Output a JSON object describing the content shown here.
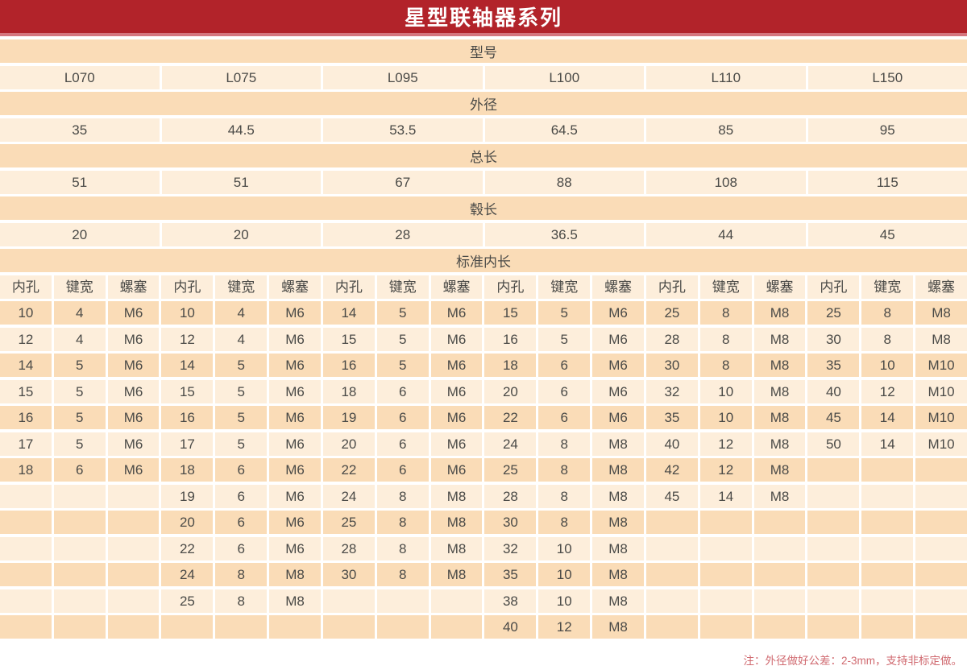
{
  "title": "星型联轴器系列",
  "colors": {
    "title_bar": "#b2232a",
    "title_stripe": "#d5767e",
    "row_dark": "#fadcb7",
    "row_light": "#fdeedb",
    "text": "#4a4a47",
    "note_text": "#d06a70"
  },
  "table": {
    "spec_rows": [
      {
        "label": "型号",
        "values": [
          "L070",
          "L075",
          "L095",
          "L100",
          "L110",
          "L150"
        ]
      },
      {
        "label": "外径",
        "values": [
          "35",
          "44.5",
          "53.5",
          "64.5",
          "85",
          "95"
        ]
      },
      {
        "label": "总长",
        "values": [
          "51",
          "51",
          "67",
          "88",
          "108",
          "115"
        ]
      },
      {
        "label": "毂长",
        "values": [
          "20",
          "20",
          "28",
          "36.5",
          "44",
          "45"
        ]
      }
    ],
    "bore_section": {
      "label": "标准内长",
      "sub_headers": [
        "内孔",
        "键宽",
        "螺塞"
      ],
      "group_count": 6,
      "rows": [
        [
          "10",
          "4",
          "M6",
          "10",
          "4",
          "M6",
          "14",
          "5",
          "M6",
          "15",
          "5",
          "M6",
          "25",
          "8",
          "M8",
          "25",
          "8",
          "M8"
        ],
        [
          "12",
          "4",
          "M6",
          "12",
          "4",
          "M6",
          "15",
          "5",
          "M6",
          "16",
          "5",
          "M6",
          "28",
          "8",
          "M8",
          "30",
          "8",
          "M8"
        ],
        [
          "14",
          "5",
          "M6",
          "14",
          "5",
          "M6",
          "16",
          "5",
          "M6",
          "18",
          "6",
          "M6",
          "30",
          "8",
          "M8",
          "35",
          "10",
          "M10"
        ],
        [
          "15",
          "5",
          "M6",
          "15",
          "5",
          "M6",
          "18",
          "6",
          "M6",
          "20",
          "6",
          "M6",
          "32",
          "10",
          "M8",
          "40",
          "12",
          "M10"
        ],
        [
          "16",
          "5",
          "M6",
          "16",
          "5",
          "M6",
          "19",
          "6",
          "M6",
          "22",
          "6",
          "M6",
          "35",
          "10",
          "M8",
          "45",
          "14",
          "M10"
        ],
        [
          "17",
          "5",
          "M6",
          "17",
          "5",
          "M6",
          "20",
          "6",
          "M6",
          "24",
          "8",
          "M8",
          "40",
          "12",
          "M8",
          "50",
          "14",
          "M10"
        ],
        [
          "18",
          "6",
          "M6",
          "18",
          "6",
          "M6",
          "22",
          "6",
          "M6",
          "25",
          "8",
          "M8",
          "42",
          "12",
          "M8",
          "",
          "",
          ""
        ],
        [
          "",
          "",
          "",
          "19",
          "6",
          "M6",
          "24",
          "8",
          "M8",
          "28",
          "8",
          "M8",
          "45",
          "14",
          "M8",
          "",
          "",
          ""
        ],
        [
          "",
          "",
          "",
          "20",
          "6",
          "M6",
          "25",
          "8",
          "M8",
          "30",
          "8",
          "M8",
          "",
          "",
          "",
          "",
          "",
          ""
        ],
        [
          "",
          "",
          "",
          "22",
          "6",
          "M6",
          "28",
          "8",
          "M8",
          "32",
          "10",
          "M8",
          "",
          "",
          "",
          "",
          "",
          ""
        ],
        [
          "",
          "",
          "",
          "24",
          "8",
          "M8",
          "30",
          "8",
          "M8",
          "35",
          "10",
          "M8",
          "",
          "",
          "",
          "",
          "",
          ""
        ],
        [
          "",
          "",
          "",
          "25",
          "8",
          "M8",
          "",
          "",
          "",
          "38",
          "10",
          "M8",
          "",
          "",
          "",
          "",
          "",
          ""
        ],
        [
          "",
          "",
          "",
          "",
          "",
          "",
          "",
          "",
          "",
          "40",
          "12",
          "M8",
          "",
          "",
          "",
          "",
          "",
          ""
        ]
      ]
    }
  },
  "note": "注：外径做好公差：2-3mm，支持非标定做。"
}
